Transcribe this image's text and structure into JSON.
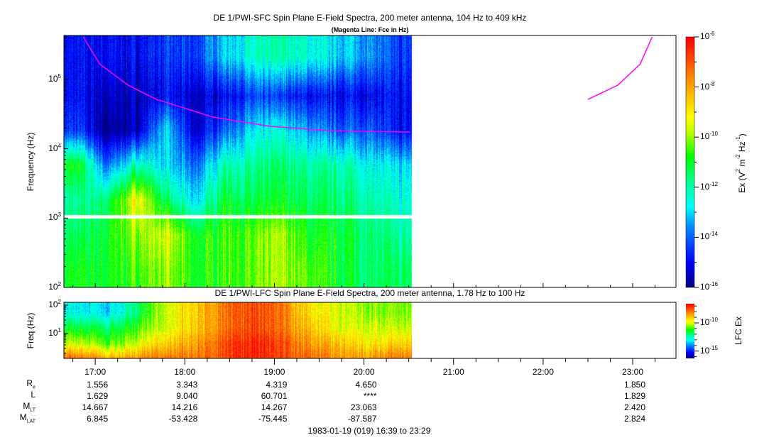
{
  "chart_data": [
    {
      "type": "heatmap",
      "title": "DE 1/PWI-SFC  Spin Plane E-Field Spectra, 200 meter antenna, 104 Hz to 409 kHz",
      "subtitle": "(Magenta Line: Fce in Hz)",
      "ylabel": "Frequency (Hz)",
      "yscale": "log",
      "ylim": [
        100,
        409000
      ],
      "yticks": [
        "10^2",
        "10^3",
        "10^4",
        "10^5"
      ],
      "xlim": [
        "16:39",
        "23:29"
      ],
      "data_end": "20:32",
      "gap_freq_hz": [
        960,
        1080
      ],
      "colorbar": {
        "label": "Ex (V^2 m^-2 Hz^-1)",
        "label_main": "Ex (V",
        "label_parts": [
          "2",
          " m",
          "-2",
          " Hz",
          "-1",
          ")"
        ],
        "range_log10": [
          -16,
          -6
        ],
        "ticks": [
          "-6",
          "-8",
          "-10",
          "-12",
          "-14",
          "-16"
        ]
      },
      "grid_times": [
        "16:49",
        "17:08",
        "17:28",
        "17:47",
        "18:07",
        "18:26",
        "18:46",
        "19:05",
        "19:24",
        "19:44",
        "20:03",
        "20:22"
      ],
      "grid_log10_freq": [
        2.25,
        2.75,
        3.25,
        3.75,
        4.25,
        4.75,
        5.3
      ],
      "log10_intensity": [
        [
          -11,
          -11,
          -10.5,
          -10,
          -11,
          -10.5,
          -10.5,
          -9.8,
          -10.5,
          -11,
          -11.5,
          -11.5
        ],
        [
          -11.5,
          -11,
          -10,
          -9.5,
          -11,
          -10.5,
          -10.5,
          -9.8,
          -11,
          -11,
          -11.5,
          -12
        ],
        [
          -12,
          -11.5,
          -9,
          -11.5,
          -13,
          -11,
          -11.5,
          -11,
          -11.5,
          -11.5,
          -12,
          -12.5
        ],
        [
          -11,
          -14,
          -12,
          -13,
          -14,
          -12,
          -12,
          -11.5,
          -12,
          -12,
          -12.5,
          -13
        ],
        [
          -14.5,
          -16,
          -15.5,
          -13,
          -15.5,
          -14,
          -13,
          -12.5,
          -13.5,
          -14,
          -14,
          -15
        ],
        [
          -15,
          -15.5,
          -15.5,
          -15,
          -15.5,
          -15,
          -14.5,
          -14.5,
          -15,
          -15,
          -15,
          -15
        ],
        [
          -15,
          -15,
          -15,
          -14.5,
          -14.5,
          -13,
          -12.5,
          -12,
          -12.5,
          -13,
          -13.5,
          -14.5
        ]
      ],
      "fce_line": {
        "color": "#ff00ff",
        "segments": [
          [
            [
              "16:52",
              409000
            ],
            [
              "17:03",
              166000
            ],
            [
              "17:22",
              82600
            ],
            [
              "17:41",
              51500
            ],
            [
              "18:19",
              28600
            ],
            [
              "18:57",
              21100
            ],
            [
              "19:35",
              18300
            ],
            [
              "20:31",
              17400
            ]
          ],
          [
            [
              "22:30",
              51500
            ],
            [
              "22:50",
              82600
            ],
            [
              "23:05",
              166000
            ],
            [
              "23:13",
              409000
            ]
          ]
        ]
      }
    },
    {
      "type": "heatmap",
      "title": "DE 1/PWI-LFC  Spin Plane E-Field Spectra, 200 meter antenna, 1.78 Hz to 100 Hz",
      "ylabel": "Freq (Hz)",
      "yscale": "log",
      "ylim": [
        1.78,
        100
      ],
      "yticks": [
        "10^1",
        "10^2"
      ],
      "xlim": [
        "16:39",
        "23:29"
      ],
      "data_end": "20:32",
      "colorbar": {
        "label": "LFC Ex",
        "range_log10": [
          -16.3,
          -6.6
        ],
        "ticks": [
          "-10",
          "-15"
        ]
      },
      "grid_times": [
        "16:49",
        "17:08",
        "17:28",
        "17:47",
        "18:07",
        "18:26",
        "18:46",
        "19:05",
        "19:24",
        "19:44",
        "20:03",
        "20:22"
      ],
      "grid_log10_freq": [
        0.3,
        0.7,
        1.2,
        1.7
      ],
      "log10_intensity": [
        [
          -8,
          -9,
          -8.5,
          -8,
          -8,
          -7.5,
          -7,
          -7.5,
          -8,
          -8.5,
          -8.5,
          -8
        ],
        [
          -10,
          -11,
          -10,
          -9,
          -8.5,
          -7.5,
          -7,
          -7.5,
          -8.5,
          -9,
          -9.5,
          -9
        ],
        [
          -11.5,
          -12,
          -11,
          -10,
          -9,
          -8,
          -7.5,
          -8,
          -9,
          -10,
          -10,
          -10
        ],
        [
          -13,
          -13.5,
          -12,
          -10,
          -9,
          -8,
          -7.5,
          -8,
          -9.5,
          -10,
          -10.5,
          -10.5
        ]
      ]
    }
  ],
  "time_axis": {
    "ticks": [
      "17:00",
      "18:00",
      "19:00",
      "20:00",
      "21:00",
      "22:00",
      "23:00"
    ],
    "rows": [
      {
        "label": "R",
        "sub": "e",
        "values": [
          "1.556",
          "3.343",
          "4.319",
          "4.650",
          "",
          "",
          "1.850"
        ]
      },
      {
        "label": "L",
        "sub": "",
        "values": [
          "1.629",
          "9.040",
          "60.701",
          "****",
          "",
          "",
          "1.829"
        ]
      },
      {
        "label": "M",
        "sub": "LT",
        "values": [
          "14.667",
          "14.216",
          "14.267",
          "23.063",
          "",
          "",
          "2.420"
        ]
      },
      {
        "label": "M",
        "sub": "LAT",
        "values": [
          "6.845",
          "-53.428",
          "-75.445",
          "-87.587",
          "",
          "",
          "2.824"
        ]
      }
    ],
    "footer": "1983-01-19 (019) 16:39 to 23:29"
  },
  "colors": {
    "fce": "#ff00ff",
    "gap": "#ffffff"
  }
}
